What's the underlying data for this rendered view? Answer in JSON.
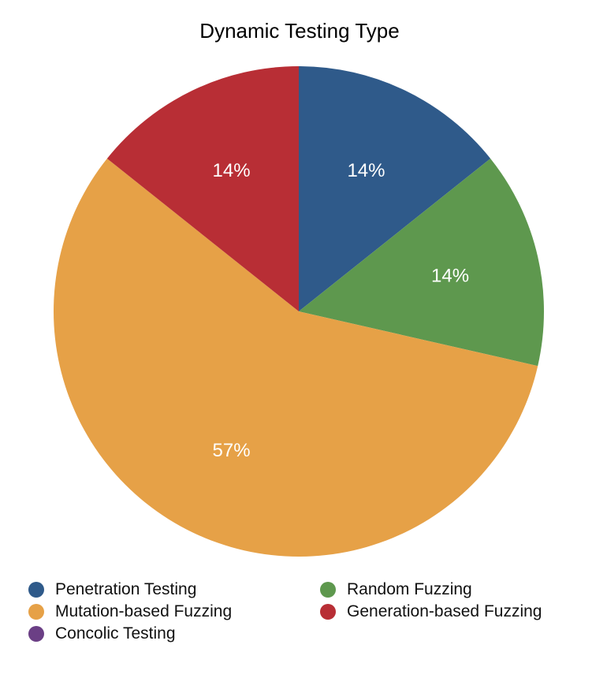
{
  "chart_data": {
    "type": "pie",
    "title": "Dynamic Testing Type",
    "categories": [
      "Penetration Testing",
      "Random Fuzzing",
      "Mutation-based Fuzzing",
      "Generation-based Fuzzing",
      "Concolic Testing"
    ],
    "values": [
      1,
      1,
      4,
      1,
      0
    ],
    "labels": [
      "14%",
      "14%",
      "57%",
      "14%",
      ""
    ],
    "colors": [
      "#2f5a8a",
      "#5e984e",
      "#e6a147",
      "#b82e35",
      "#6b3f85"
    ],
    "legend_position": "bottom"
  }
}
